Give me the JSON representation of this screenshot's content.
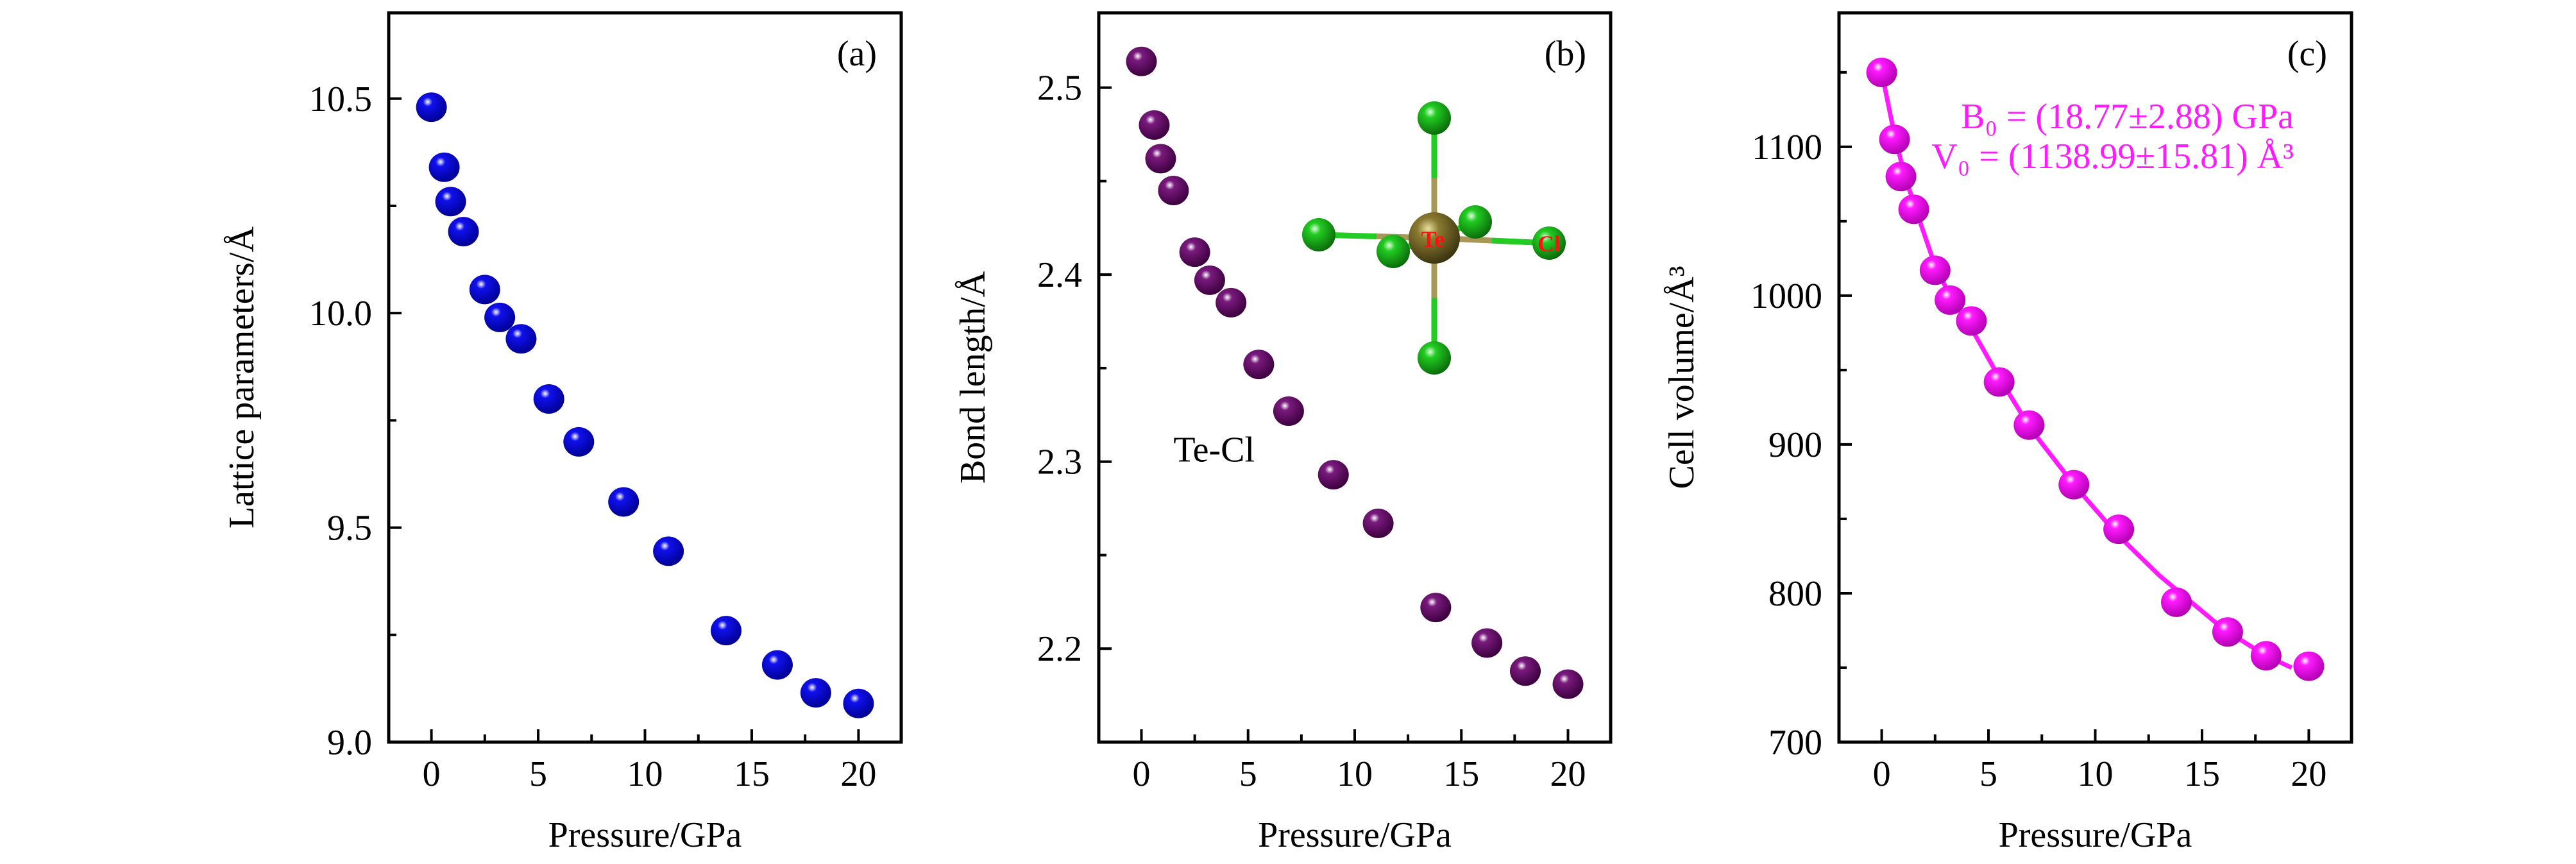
{
  "chart_data": [
    {
      "type": "scatter",
      "panel_label": "(a)",
      "xlabel": "Pressure/GPa",
      "ylabel": "Lattice parameters/Å",
      "xlim": [
        -2,
        22
      ],
      "ylim": [
        9.0,
        10.7
      ],
      "xticks": [
        0,
        5,
        10,
        15,
        20
      ],
      "xtick_labels": [
        "0",
        "5",
        "10",
        "15",
        "20"
      ],
      "xminor_step": 2.5,
      "yticks": [
        9.0,
        9.5,
        10.0,
        10.5
      ],
      "ytick_labels": [
        "9.0",
        "9.5",
        "10.0",
        "10.5"
      ],
      "yminor_step": 0.25,
      "grid": false,
      "marker_color": "#1010ee",
      "x": [
        0,
        0.6,
        0.9,
        1.5,
        2.5,
        3.2,
        4.2,
        5.5,
        6.9,
        9.0,
        11.1,
        13.8,
        16.2,
        18.0,
        20.0
      ],
      "y": [
        10.48,
        10.34,
        10.26,
        10.19,
        10.055,
        9.99,
        9.94,
        9.8,
        9.7,
        9.56,
        9.445,
        9.26,
        9.18,
        9.115,
        9.09
      ]
    },
    {
      "type": "scatter",
      "panel_label": "(b)",
      "xlabel": "Pressure/GPa",
      "ylabel": "Bond length/Å",
      "xlim": [
        -2,
        22
      ],
      "ylim": [
        2.15,
        2.54
      ],
      "xticks": [
        0,
        5,
        10,
        15,
        20
      ],
      "xtick_labels": [
        "0",
        "5",
        "10",
        "15",
        "20"
      ],
      "xminor_step": 2.5,
      "yticks": [
        2.2,
        2.3,
        2.4,
        2.5
      ],
      "ytick_labels": [
        "2.2",
        "2.3",
        "2.4",
        "2.5"
      ],
      "yminor_step": 0.05,
      "grid": false,
      "marker_color": "#7a1a7e",
      "annotation": "Te-Cl",
      "inset_labels": {
        "center_atom": "Te",
        "ligand_atom": "Cl"
      },
      "inset_colors": {
        "Te": "#8a7a30",
        "Cl": "#22cc22"
      },
      "x": [
        0,
        0.6,
        0.9,
        1.5,
        2.5,
        3.2,
        4.2,
        5.5,
        6.9,
        9.0,
        11.1,
        13.8,
        16.2,
        18.0,
        20.0
      ],
      "y": [
        2.514,
        2.48,
        2.462,
        2.445,
        2.412,
        2.397,
        2.385,
        2.352,
        2.327,
        2.293,
        2.267,
        2.222,
        2.203,
        2.188,
        2.181
      ]
    },
    {
      "type": "scatter",
      "panel_label": "(c)",
      "xlabel": "Pressure/GPa",
      "ylabel": "Cell volume/Å³",
      "xlim": [
        -2,
        22
      ],
      "ylim": [
        700,
        1190
      ],
      "xticks": [
        0,
        5,
        10,
        15,
        20
      ],
      "xtick_labels": [
        "0",
        "5",
        "10",
        "15",
        "20"
      ],
      "xminor_step": 2.5,
      "yticks": [
        700,
        800,
        900,
        1000,
        1100
      ],
      "ytick_labels": [
        "700",
        "800",
        "900",
        "1000",
        "1100"
      ],
      "yminor_step": 50,
      "grid": false,
      "marker_color": "#ff1aff",
      "annotation_lines": [
        "B₀ = (18.77±2.88) GPa",
        "V₀ = (1138.99±15.81) Å³"
      ],
      "x": [
        0,
        0.6,
        0.9,
        1.5,
        2.5,
        3.2,
        4.2,
        5.5,
        6.9,
        9.0,
        11.1,
        13.8,
        16.2,
        18.0,
        20.0
      ],
      "y": [
        1150,
        1105,
        1080,
        1058,
        1017,
        997,
        983,
        942,
        913,
        873,
        843,
        794,
        774,
        758,
        751
      ],
      "fit_curve": {
        "x": [
          0,
          0.6,
          1.0,
          1.5,
          2.5,
          3.2,
          4.2,
          5.5,
          7.0,
          9.0,
          11.0,
          13.0,
          14.0,
          16.0,
          18.0,
          19.2
        ],
        "y": [
          1150,
          1108,
          1085,
          1062,
          1020,
          1000,
          978,
          945,
          910,
          873,
          840,
          812,
          800,
          776,
          758,
          750
        ]
      }
    }
  ]
}
